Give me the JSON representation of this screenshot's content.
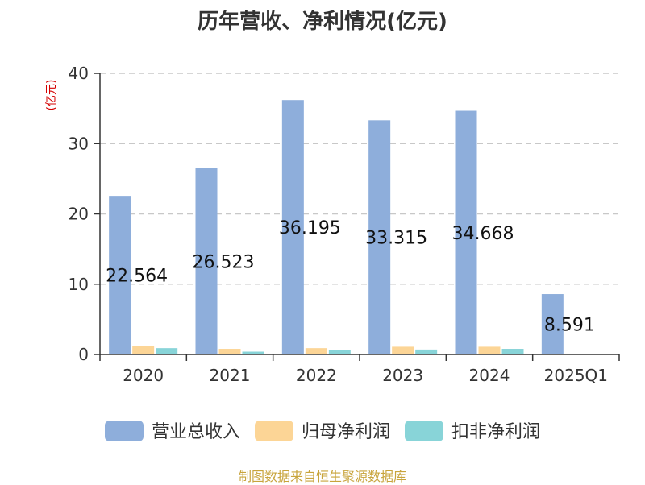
{
  "title": "历年营收、净利情况(亿元)",
  "source": "制图数据来自恒生聚源数据库",
  "colors": {
    "营业总收入": "#8eaedb",
    "归母净利润": "#fcd596",
    "扣非净利润": "#88d4d8"
  },
  "chart_data": {
    "type": "bar",
    "title": "历年营收、净利情况(亿元)",
    "ylabel": "(亿元)",
    "ylim": [
      0,
      40
    ],
    "yticks": [
      0,
      10,
      20,
      30,
      40
    ],
    "grid": true,
    "legend_position": "bottom",
    "categories": [
      "2020",
      "2021",
      "2022",
      "2023",
      "2024",
      "2025Q1"
    ],
    "series": [
      {
        "name": "营业总收入",
        "values": [
          22.564,
          26.523,
          36.195,
          33.315,
          34.668,
          8.591
        ],
        "labels": [
          "22.564",
          "26.523",
          "36.195",
          "33.315",
          "34.668",
          "8.591"
        ]
      },
      {
        "name": "归母净利润",
        "values": [
          1.2,
          0.8,
          0.9,
          1.1,
          1.1,
          0.1
        ]
      },
      {
        "name": "扣非净利润",
        "values": [
          0.9,
          0.4,
          0.6,
          0.7,
          0.8,
          0.05
        ]
      }
    ]
  }
}
